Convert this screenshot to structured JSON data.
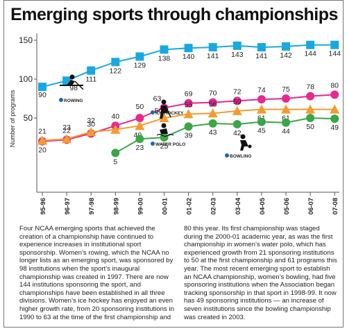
{
  "chart_data": {
    "type": "line",
    "title": "Emerging sports through championships",
    "ylabel": "Number of programs",
    "xlabel": "",
    "ylim": [
      0,
      150
    ],
    "yticks": [
      50,
      100,
      150
    ],
    "grid": false,
    "categories": [
      "95-96",
      "96-97",
      "97-98",
      "98-99",
      "99-00",
      "00-01",
      "01-02",
      "02-03",
      "03-04",
      "04-05",
      "05-06",
      "06-07",
      "07-08"
    ],
    "series": [
      {
        "name": "ROWING",
        "color": "#17a9e1",
        "marker": "square",
        "values": [
          90,
          98,
          111,
          122,
          129,
          138,
          140,
          141,
          143,
          141,
          142,
          144,
          144
        ],
        "labels": [
          "90",
          "98",
          "111",
          "122",
          "129",
          "138",
          "140",
          "141",
          "143",
          "141",
          "142",
          "144",
          "144"
        ]
      },
      {
        "name": "ICE HOCKEY",
        "color": "#e8288c",
        "marker": "circle",
        "values": [
          20,
          22,
          30,
          40,
          50,
          63,
          69,
          70,
          72,
          74,
          75,
          78,
          80
        ],
        "labels": [
          "20",
          "22",
          "30",
          "40",
          "50",
          "63",
          "69",
          "70",
          "72",
          "74",
          "75",
          "78",
          "80"
        ]
      },
      {
        "name": "WATER POLO",
        "color": "#f39c2d",
        "marker": "triangle",
        "values": [
          21,
          23,
          32,
          35,
          40,
          50,
          55,
          56,
          59,
          61,
          61,
          61,
          61
        ],
        "labels": [
          "21",
          "23",
          "32",
          "",
          "40",
          "50",
          "55",
          "56",
          "59",
          "61",
          "61",
          "61",
          "61"
        ]
      },
      {
        "name": "BOWLING",
        "color": "#3aa648",
        "marker": "circle",
        "values": [
          null,
          null,
          null,
          5,
          23,
          25,
          39,
          43,
          42,
          45,
          44,
          50,
          49
        ],
        "labels": [
          "",
          "",
          "",
          "5",
          "23",
          "25",
          "39",
          "43",
          "42",
          "45",
          "44",
          "50",
          "49"
        ]
      }
    ]
  },
  "caption": "Four NCAA emerging sports that achieved the creation of a championship have continued to experience increases in institutional sport sponsorship. Women’s rowing, which the NCAA no longer lists as an emerging sport, was sponsored by 98 institutions when the sport’s inaugural championship was created in 1997. There are now 144 institutions sponsoring the sport, and championships have been established in all three divisions. Women’s ice hockey has enjoyed an even higher growth rate, from 20 sponsoring institutions in 1990 to 63 at the time of the first championship and 80 this year. Its first championship was staged during the 2000-01 academic year, as was the first championship in women’s water polo, which has experienced growth from 21 sponsoring institutions to 50 at the first championship and 61 programs this year. The most recent emerging sport to establish an NCAA championship, women’s bowling, had five sponsoring institutions when the Association began tracking sponsorship in that sport in 1998-99. It now has 49 sponsoring institutions — an increase of seven institutions since the bowling championship was created in 2003.",
  "icons": [
    "rowing-icon",
    "ice-hockey-icon",
    "water-polo-icon",
    "bowling-icon"
  ]
}
